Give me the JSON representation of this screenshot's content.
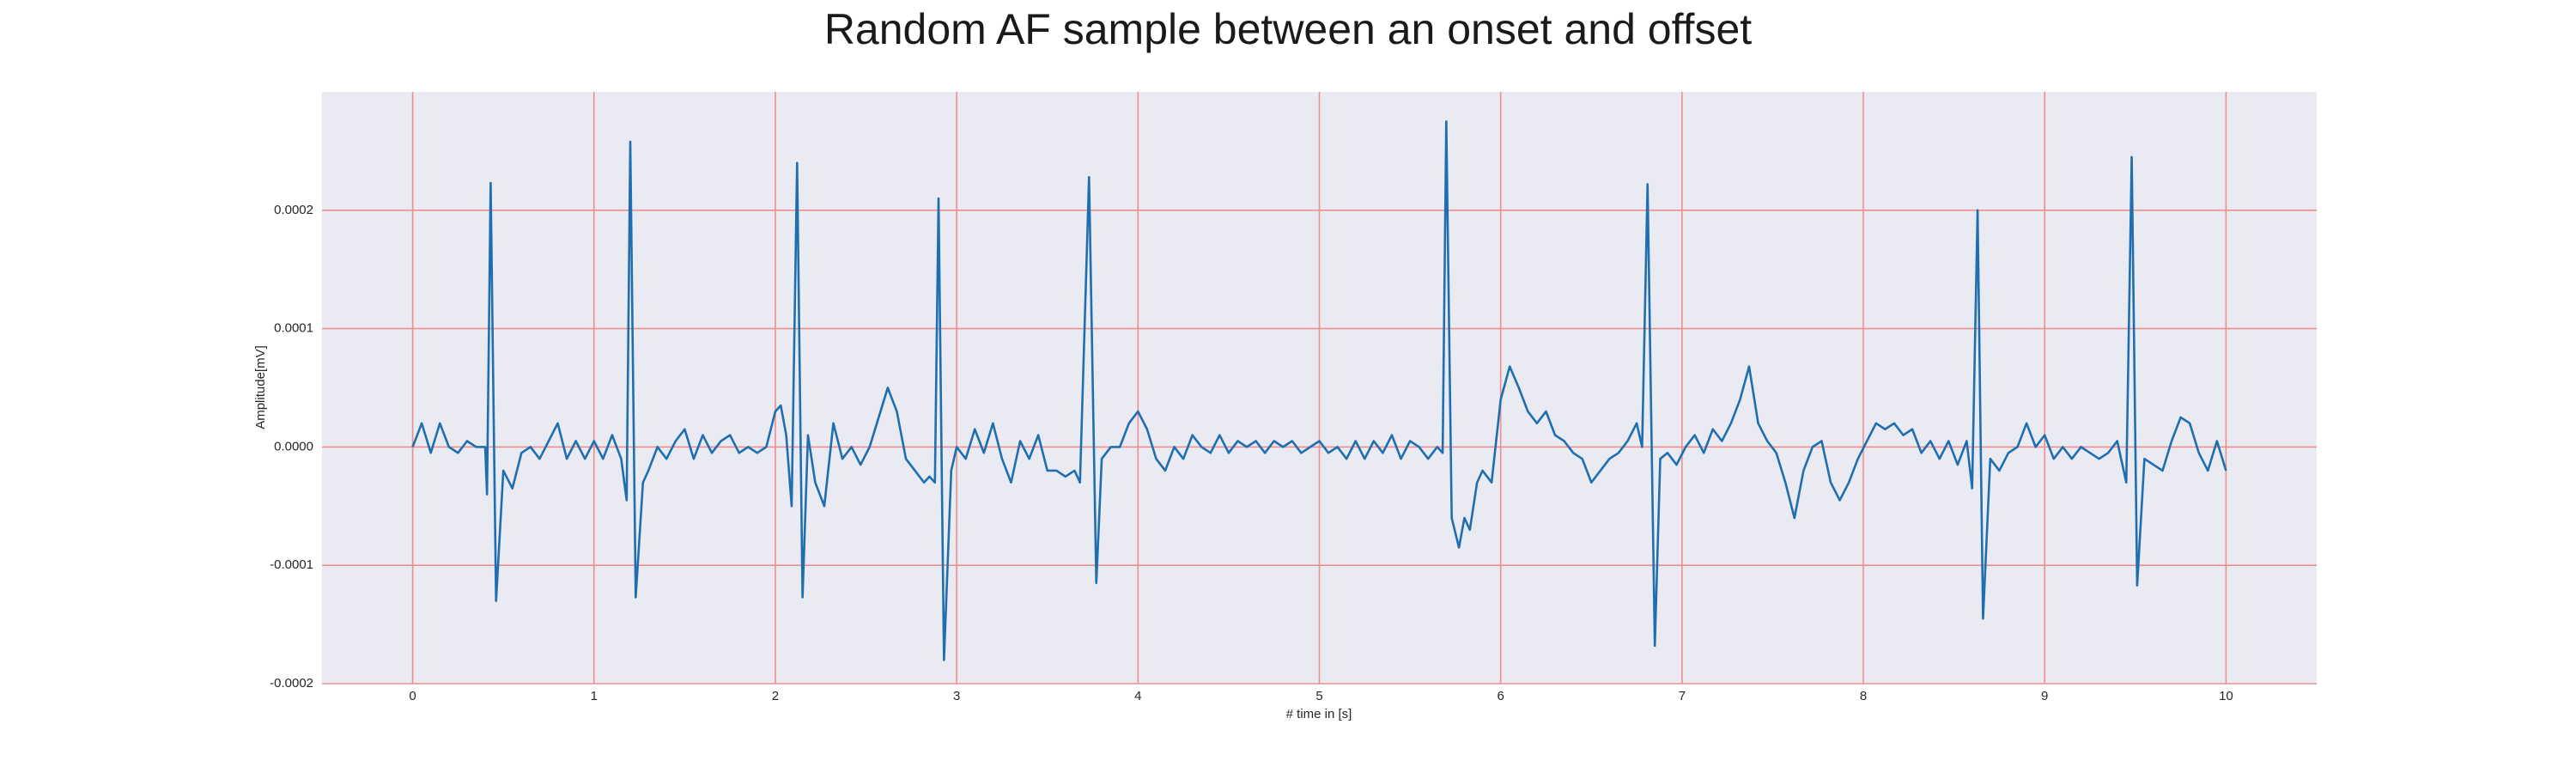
{
  "chart_data": {
    "type": "line",
    "title": "Random AF sample between an onset and offset",
    "x_label": "# time in [s]",
    "y_label": "Amplitude[mV]",
    "color": "#1f6fb0",
    "grid": true,
    "xlim": [
      -0.5,
      10.5
    ],
    "ylim": [
      -0.0002,
      0.0003
    ],
    "xticks": [
      0,
      1,
      2,
      3,
      4,
      5,
      6,
      7,
      8,
      9,
      10
    ],
    "yticks": [
      {
        "value": -0.0002,
        "label": "-0.0002"
      },
      {
        "value": -0.0001,
        "label": "-0.0001"
      },
      {
        "value": 0,
        "label": "0.0000"
      },
      {
        "value": 0.0001,
        "label": "0.0001"
      },
      {
        "value": 0.0002,
        "label": "0.0002"
      }
    ],
    "x": [
      0,
      0.05,
      0.1,
      0.15,
      0.2,
      0.25,
      0.3,
      0.35,
      0.4,
      0.41,
      0.43,
      0.46,
      0.5,
      0.55,
      0.6,
      0.65,
      0.7,
      0.75,
      0.8,
      0.85,
      0.9,
      0.95,
      1.0,
      1.05,
      1.1,
      1.15,
      1.18,
      1.2,
      1.23,
      1.27,
      1.3,
      1.35,
      1.4,
      1.45,
      1.5,
      1.55,
      1.6,
      1.65,
      1.7,
      1.75,
      1.8,
      1.85,
      1.9,
      1.95,
      2.0,
      2.03,
      2.06,
      2.09,
      2.12,
      2.15,
      2.18,
      2.22,
      2.27,
      2.32,
      2.37,
      2.42,
      2.47,
      2.52,
      2.58,
      2.62,
      2.67,
      2.72,
      2.77,
      2.82,
      2.85,
      2.88,
      2.9,
      2.93,
      2.97,
      3.0,
      3.05,
      3.1,
      3.15,
      3.2,
      3.25,
      3.3,
      3.35,
      3.4,
      3.45,
      3.5,
      3.55,
      3.6,
      3.65,
      3.68,
      3.73,
      3.77,
      3.8,
      3.85,
      3.9,
      3.95,
      4.0,
      4.05,
      4.1,
      4.15,
      4.2,
      4.25,
      4.3,
      4.35,
      4.4,
      4.45,
      4.5,
      4.55,
      4.6,
      4.65,
      4.7,
      4.75,
      4.8,
      4.85,
      4.9,
      4.95,
      5.0,
      5.05,
      5.1,
      5.15,
      5.2,
      5.25,
      5.3,
      5.35,
      5.4,
      5.45,
      5.5,
      5.55,
      5.6,
      5.65,
      5.68,
      5.7,
      5.73,
      5.77,
      5.8,
      5.83,
      5.87,
      5.9,
      5.95,
      6.0,
      6.05,
      6.1,
      6.15,
      6.2,
      6.25,
      6.3,
      6.35,
      6.4,
      6.45,
      6.5,
      6.55,
      6.6,
      6.65,
      6.7,
      6.75,
      6.78,
      6.81,
      6.85,
      6.88,
      6.92,
      6.97,
      7.02,
      7.07,
      7.12,
      7.17,
      7.22,
      7.27,
      7.32,
      7.37,
      7.42,
      7.47,
      7.52,
      7.57,
      7.62,
      7.67,
      7.72,
      7.77,
      7.82,
      7.87,
      7.92,
      7.97,
      8.02,
      8.07,
      8.12,
      8.17,
      8.22,
      8.27,
      8.32,
      8.37,
      8.42,
      8.47,
      8.52,
      8.57,
      8.6,
      8.63,
      8.66,
      8.7,
      8.75,
      8.8,
      8.85,
      8.9,
      8.95,
      9.0,
      9.05,
      9.1,
      9.15,
      9.2,
      9.25,
      9.3,
      9.35,
      9.4,
      9.45,
      9.48,
      9.51,
      9.55,
      9.6,
      9.65,
      9.7,
      9.75,
      9.8,
      9.85,
      9.9,
      9.95,
      10.0
    ],
    "values": [
      0,
      2e-05,
      -5e-06,
      2e-05,
      0,
      -5e-06,
      5e-06,
      0,
      0,
      -4e-05,
      0.000223,
      -0.00013,
      -2e-05,
      -3.5e-05,
      -5e-06,
      0,
      -1e-05,
      5e-06,
      2e-05,
      -1e-05,
      5e-06,
      -1e-05,
      5e-06,
      -1e-05,
      1e-05,
      -1e-05,
      -4.5e-05,
      0.000258,
      -0.000127,
      -3e-05,
      -2e-05,
      0,
      -1e-05,
      5e-06,
      1.5e-05,
      -1e-05,
      1e-05,
      -5e-06,
      5e-06,
      1e-05,
      -5e-06,
      0,
      -5e-06,
      0,
      3e-05,
      3.5e-05,
      1e-05,
      -5e-05,
      0.00024,
      -0.000127,
      1e-05,
      -3e-05,
      -5e-05,
      2e-05,
      -1e-05,
      0,
      -1.5e-05,
      0,
      3e-05,
      5e-05,
      3e-05,
      -1e-05,
      -2e-05,
      -3e-05,
      -2.5e-05,
      -3e-05,
      0.00021,
      -0.00018,
      -2e-05,
      0,
      -1e-05,
      1.5e-05,
      -5e-06,
      2e-05,
      -1e-05,
      -3e-05,
      5e-06,
      -1e-05,
      1e-05,
      -2e-05,
      -2e-05,
      -2.5e-05,
      -2e-05,
      -3e-05,
      0.000228,
      -0.000115,
      -1e-05,
      0,
      0,
      2e-05,
      3e-05,
      1.5e-05,
      -1e-05,
      -2e-05,
      0,
      -1e-05,
      1e-05,
      0,
      -5e-06,
      1e-05,
      -5e-06,
      5e-06,
      0,
      5e-06,
      -5e-06,
      5e-06,
      0,
      5e-06,
      -5e-06,
      0,
      5e-06,
      -5e-06,
      0,
      -1e-05,
      5e-06,
      -1e-05,
      5e-06,
      -5e-06,
      1e-05,
      -1e-05,
      5e-06,
      0,
      -1e-05,
      0,
      -5e-06,
      0.000275,
      -6e-05,
      -8.5e-05,
      -6e-05,
      -7e-05,
      -3e-05,
      -2e-05,
      -3e-05,
      4e-05,
      6.8e-05,
      5e-05,
      3e-05,
      2e-05,
      3e-05,
      1e-05,
      5e-06,
      -5e-06,
      -1e-05,
      -3e-05,
      -2e-05,
      -1e-05,
      -5e-06,
      5e-06,
      2e-05,
      0,
      0.000222,
      -0.000168,
      -1e-05,
      -5e-06,
      -1.5e-05,
      0,
      1e-05,
      -5e-06,
      1.5e-05,
      5e-06,
      2e-05,
      4e-05,
      6.8e-05,
      2e-05,
      5e-06,
      -5e-06,
      -3e-05,
      -6e-05,
      -2e-05,
      0,
      5e-06,
      -3e-05,
      -4.5e-05,
      -3e-05,
      -1e-05,
      5e-06,
      2e-05,
      1.5e-05,
      2e-05,
      1e-05,
      1.5e-05,
      -5e-06,
      5e-06,
      -1e-05,
      5e-06,
      -1.5e-05,
      5e-06,
      -3.5e-05,
      0.0002,
      -0.000145,
      -1e-05,
      -2e-05,
      -5e-06,
      0,
      2e-05,
      0,
      1e-05,
      -1e-05,
      0,
      -1e-05,
      0,
      -5e-06,
      -1e-05,
      -5e-06,
      5e-06,
      -3e-05,
      0.000245,
      -0.000117,
      -1e-05,
      -1.5e-05,
      -2e-05,
      5e-06,
      2.5e-05,
      2e-05,
      -5e-06,
      -2e-05,
      5e-06,
      -2e-05
    ]
  }
}
